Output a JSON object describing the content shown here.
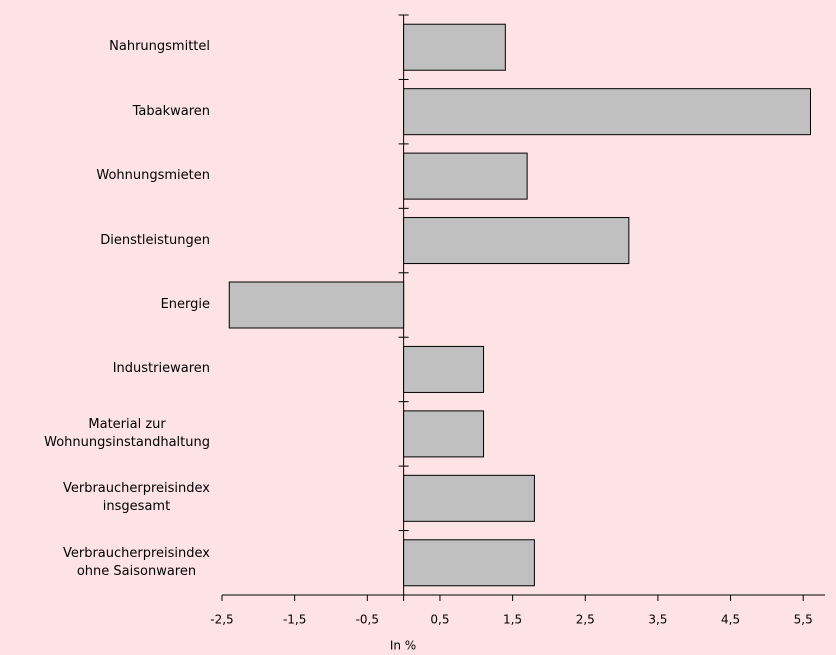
{
  "chart_data": {
    "type": "hbar",
    "categories": [
      "Nahrungsmittel",
      "Tabakwaren",
      "Wohnungsmieten",
      "Dienstleistungen",
      "Energie",
      "Industriewaren",
      "Material zur\nWohnungsinstandhaltung",
      "Verbraucherpreisindex\ninsgesamt",
      "Verbraucherpreisindex\nohne Saisonwaren"
    ],
    "values": [
      1.4,
      5.6,
      1.7,
      3.1,
      -2.4,
      1.1,
      1.1,
      1.8,
      1.8
    ],
    "color": "#c0c0c0",
    "xlabel": "In %",
    "xlim": [
      -2.5,
      5.8
    ],
    "xticks": [
      {
        "value": -2.5,
        "label": "-2,5"
      },
      {
        "value": -1.5,
        "label": "-1,5"
      },
      {
        "value": -0.5,
        "label": "-0,5"
      },
      {
        "value": 0.5,
        "label": "0,5"
      },
      {
        "value": 1.5,
        "label": "1,5"
      },
      {
        "value": 2.5,
        "label": "2,5"
      },
      {
        "value": 3.5,
        "label": "3,5"
      },
      {
        "value": 4.5,
        "label": "4,5"
      },
      {
        "value": 5.5,
        "label": "5,5"
      }
    ]
  }
}
